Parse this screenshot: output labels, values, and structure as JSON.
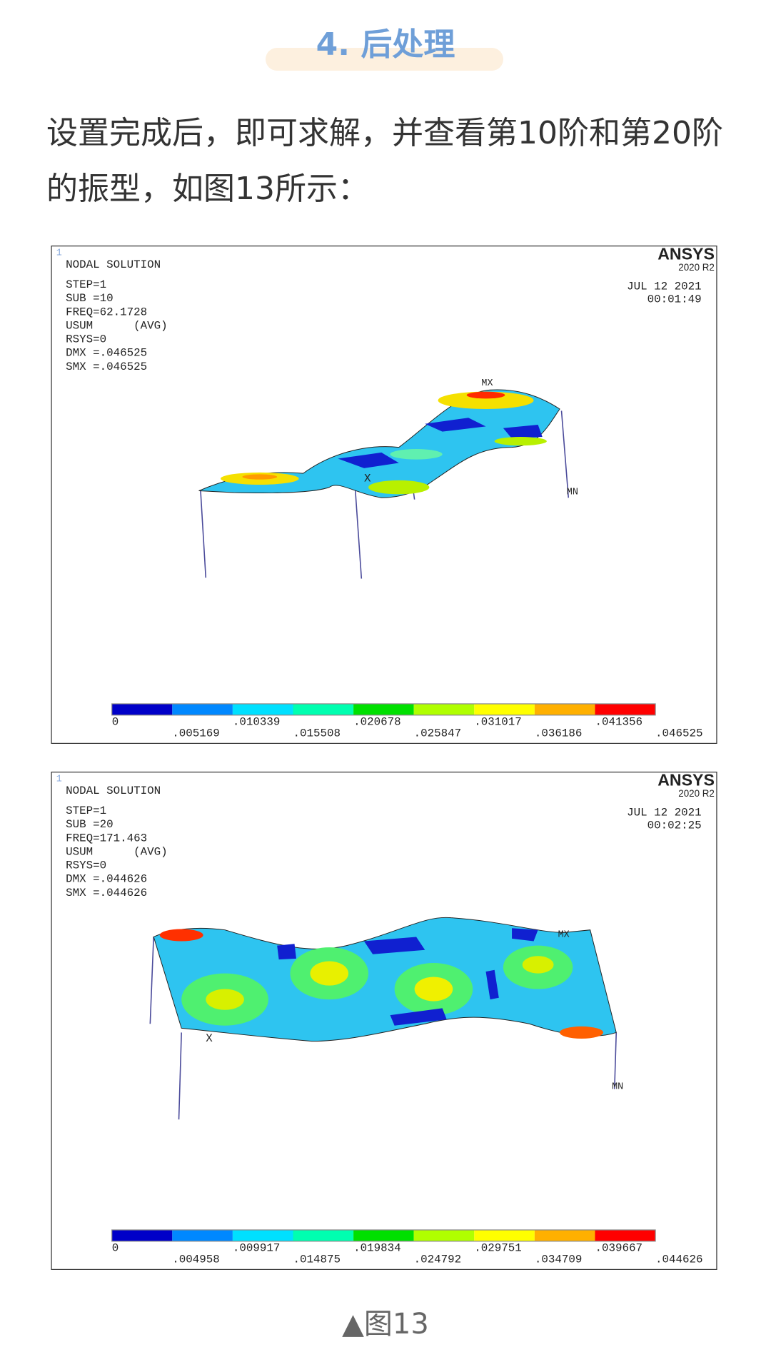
{
  "heading": "4. 后处理",
  "paragraph": "设置完成后，即可求解，并查看第10阶和第20阶的振型，如图13所示：",
  "figures": [
    {
      "corner_mark": "1",
      "title": "NODAL SOLUTION",
      "info": [
        "STEP=1",
        "SUB =10",
        "FREQ=62.1728",
        "USUM      (AVG)",
        "RSYS=0",
        "DMX =.046525",
        "SMX =.046525"
      ],
      "brand": "ANSYS",
      "version": "2020 R2",
      "date": "JUL 12 2021",
      "time": "00:01:49",
      "max_label": "MX",
      "min_label": "MN",
      "axis_label": "X",
      "legend_labels": [
        "0",
        ".005169",
        ".010339",
        ".015508",
        ".020678",
        ".025847",
        ".031017",
        ".036186",
        ".041356",
        ".046525"
      ]
    },
    {
      "corner_mark": "1",
      "title": "NODAL SOLUTION",
      "info": [
        "STEP=1",
        "SUB =20",
        "FREQ=171.463",
        "USUM      (AVG)",
        "RSYS=0",
        "DMX =.044626",
        "SMX =.044626"
      ],
      "brand": "ANSYS",
      "version": "2020 R2",
      "date": "JUL 12 2021",
      "time": "00:02:25",
      "max_label": "MX",
      "min_label": "MN",
      "axis_label": "X",
      "legend_labels": [
        "0",
        ".004958",
        ".009917",
        ".014875",
        ".019834",
        ".024792",
        ".029751",
        ".034709",
        ".039667",
        ".044626"
      ]
    }
  ],
  "caption": "▲图13"
}
